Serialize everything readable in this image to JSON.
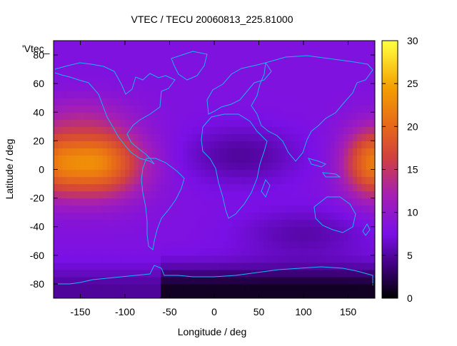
{
  "chart_data": {
    "type": "heatmap",
    "title": "VTEC / TECU 20060813_225.81000",
    "xlabel": "Longitude / deg",
    "ylabel": "Latitude / deg",
    "xlim": [
      -180,
      180
    ],
    "ylim": [
      -90,
      90
    ],
    "x_ticks": [
      -150,
      -100,
      -50,
      0,
      50,
      100,
      150
    ],
    "y_ticks": [
      -80,
      -60,
      -40,
      -20,
      0,
      20,
      40,
      60,
      80
    ],
    "colorbar": {
      "range": [
        0,
        30
      ],
      "ticks": [
        0,
        5,
        10,
        15,
        20,
        25,
        30
      ],
      "palette": [
        "#000000",
        "#3c0078",
        "#7a10e6",
        "#a51fb3",
        "#d2423c",
        "#e86c18",
        "#f4a000",
        "#ffe830",
        "#ffff40"
      ]
    },
    "legend_key": "'Vtec_",
    "overlay": "coastlines",
    "overlay_color": "#18b4f0",
    "regions": [
      {
        "name": "Pacific equatorial anomaly (west)",
        "lon_range": [
          -180,
          -60
        ],
        "lat_range": [
          -25,
          35
        ],
        "approx_max_tecu": 21
      },
      {
        "name": "Pacific equatorial anomaly (east)",
        "lon_range": [
          140,
          180
        ],
        "lat_range": [
          -25,
          35
        ],
        "approx_max_tecu": 20
      },
      {
        "name": "Antarctic low",
        "lon_range": [
          -50,
          180
        ],
        "lat_range": [
          -90,
          -65
        ],
        "approx_min_tecu": 1
      },
      {
        "name": "Background",
        "approx_tecu": 8
      }
    ]
  }
}
